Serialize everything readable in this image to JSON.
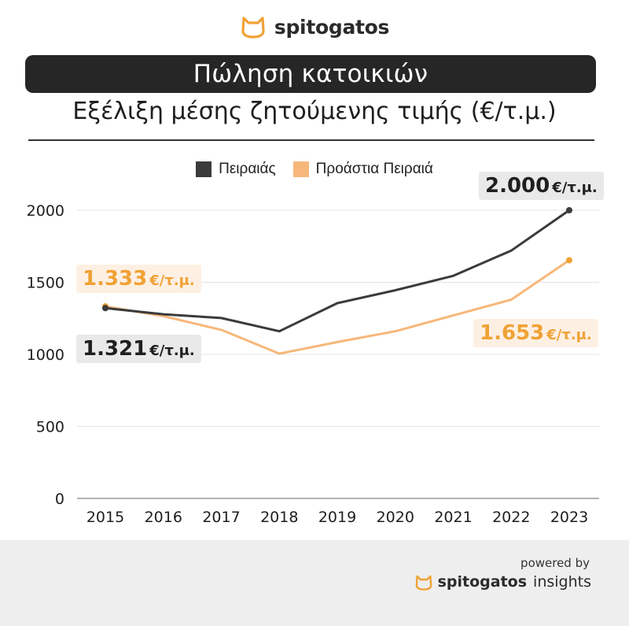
{
  "brand": {
    "name": "spitogatos"
  },
  "banner": {
    "title": "Πώληση κατοικιών"
  },
  "subtitle": "Εξέλιξη μέσης ζητούμενης τιμής (€/τ.μ.)",
  "colors": {
    "dark": "#3b3b3b",
    "orange": "#f7b77a",
    "accent": "#f0a235",
    "banner": "#262626"
  },
  "chart_data": {
    "type": "line",
    "categories": [
      "2015",
      "2016",
      "2017",
      "2018",
      "2019",
      "2020",
      "2021",
      "2022",
      "2023"
    ],
    "series": [
      {
        "name": "Πειραιάς",
        "values": [
          1321,
          1278,
          1252,
          1160,
          1355,
          1445,
          1545,
          1720,
          2000
        ]
      },
      {
        "name": "Προάστια Πειραιά",
        "values": [
          1333,
          1265,
          1170,
          1005,
          1085,
          1160,
          1270,
          1380,
          1653
        ]
      }
    ],
    "yticks": [
      "0",
      "500",
      "1000",
      "1500",
      "2000"
    ],
    "ylim": [
      0,
      2000
    ],
    "grid": true,
    "legend": "top-center",
    "annotations": [
      {
        "value": "1.321",
        "unit": "€/τ.μ.",
        "series": "Πειραιάς",
        "point": "2015"
      },
      {
        "value": "1.333",
        "unit": "€/τ.μ.",
        "series": "Προάστια Πειραιά",
        "point": "2015"
      },
      {
        "value": "2.000",
        "unit": "€/τ.μ.",
        "series": "Πειραιάς",
        "point": "2023"
      },
      {
        "value": "1.653",
        "unit": "€/τ.μ.",
        "series": "Προάστια Πειραιά",
        "point": "2023"
      }
    ]
  },
  "footer": {
    "powered_by": "powered by",
    "brand_bold": "spitogatos",
    "brand_light": "insights"
  }
}
